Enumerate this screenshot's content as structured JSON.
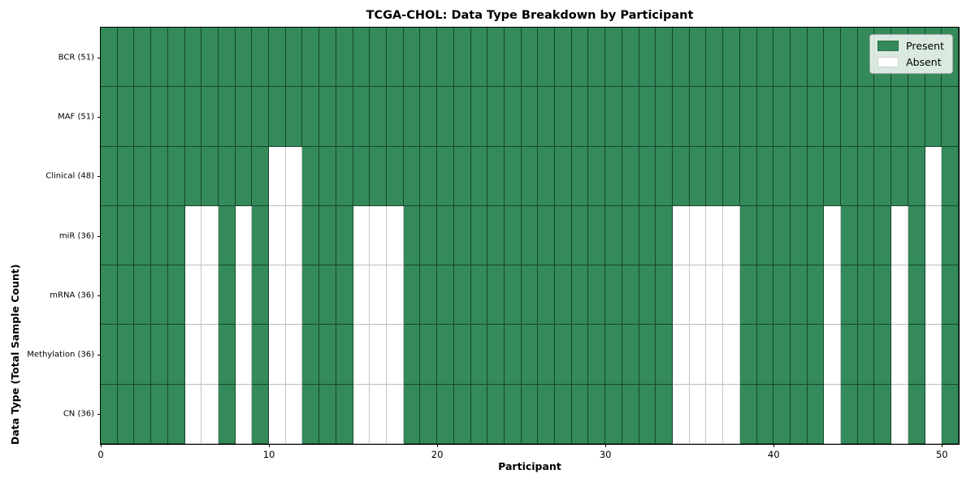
{
  "chart_data": {
    "type": "heatmap",
    "title": "TCGA-CHOL: Data Type Breakdown by Participant",
    "xlabel": "Participant",
    "ylabel": "Data Type (Total Sample Count)",
    "x_ticks": [
      0,
      10,
      20,
      30,
      40,
      50
    ],
    "x_range": [
      0,
      51
    ],
    "n_participants": 51,
    "grid": "cell-borders-on",
    "legend_position": "upper-right",
    "colors": {
      "present": "#348a5a",
      "absent": "#ffffff"
    },
    "rows": [
      {
        "label": "BCR (51)",
        "total": 51,
        "absent": []
      },
      {
        "label": "MAF (51)",
        "total": 51,
        "absent": []
      },
      {
        "label": "Clinical (48)",
        "total": 48,
        "absent": [
          10,
          11,
          49
        ]
      },
      {
        "label": "miR (36)",
        "total": 36,
        "absent": [
          5,
          6,
          8,
          10,
          11,
          15,
          16,
          17,
          34,
          35,
          36,
          37,
          43,
          47,
          49
        ]
      },
      {
        "label": "mRNA (36)",
        "total": 36,
        "absent": [
          5,
          6,
          8,
          10,
          11,
          15,
          16,
          17,
          34,
          35,
          36,
          37,
          43,
          47,
          49
        ]
      },
      {
        "label": "Methylation (36)",
        "total": 36,
        "absent": [
          5,
          6,
          8,
          10,
          11,
          15,
          16,
          17,
          34,
          35,
          36,
          37,
          43,
          47,
          49
        ]
      },
      {
        "label": "CN (36)",
        "total": 36,
        "absent": [
          5,
          6,
          8,
          10,
          11,
          15,
          16,
          17,
          34,
          35,
          36,
          37,
          43,
          47,
          49
        ]
      }
    ],
    "legend": [
      {
        "label": "Present",
        "color": "#348a5a"
      },
      {
        "label": "Absent",
        "color": "#ffffff"
      }
    ]
  }
}
